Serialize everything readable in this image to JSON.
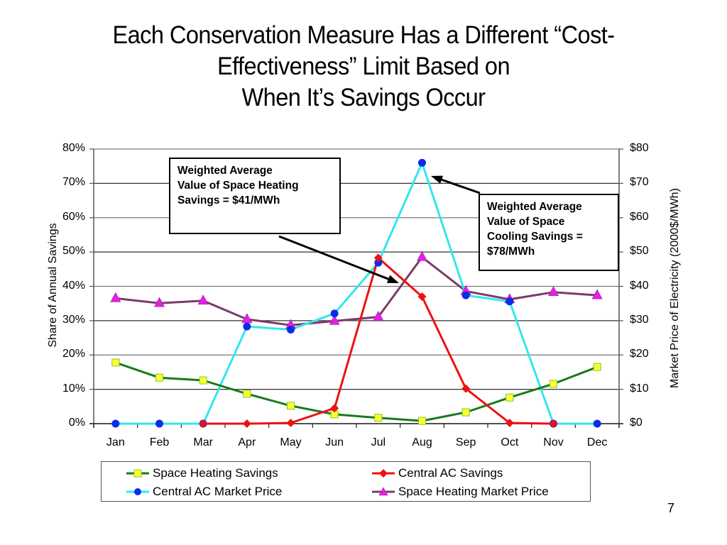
{
  "title": {
    "lines": [
      "Each Conservation Measure Has a Different “Cost-",
      "Effectiveness” Limit Based on",
      "When It’s Savings Occur"
    ]
  },
  "annotations": {
    "heating": [
      "Weighted Average",
      "Value of Space Heating",
      "Savings = $41/MWh"
    ],
    "cooling": [
      "Weighted Average",
      "Value of Space",
      "Cooling Savings =",
      "$78/MWh"
    ]
  },
  "page_number": "7",
  "colors": {
    "space_heating_savings": "#1a7a1a",
    "space_heating_savings_marker": "#ffff33",
    "central_ac_savings": "#ee1111",
    "central_ac_market_price": "#33e6ee",
    "central_ac_market_price_marker": "#0a2ee6",
    "space_heating_market_price": "#7d3a6a",
    "space_heating_market_price_marker": "#e61ee6"
  },
  "chart_data": {
    "type": "line",
    "categories": [
      "Jan",
      "Feb",
      "Mar",
      "Apr",
      "May",
      "Jun",
      "Jul",
      "Aug",
      "Sep",
      "Oct",
      "Nov",
      "Dec"
    ],
    "ylabel": "Share of Annual Savings",
    "y2label": "Market Price of Electricity (2000$/MWh)",
    "ylim": [
      0,
      80
    ],
    "y2lim": [
      0,
      80
    ],
    "yticks": [
      "0%",
      "10%",
      "20%",
      "30%",
      "40%",
      "50%",
      "60%",
      "70%",
      "80%"
    ],
    "y2ticks": [
      "$0",
      "$10",
      "$20",
      "$30",
      "$40",
      "$50",
      "$60",
      "$70",
      "$80"
    ],
    "grid": true,
    "legend_position": "bottom",
    "series": [
      {
        "name": "Space Heating Savings",
        "axis": "left",
        "marker": "square",
        "values": [
          17.8,
          13.4,
          12.6,
          8.7,
          5.2,
          2.7,
          1.7,
          0.8,
          3.3,
          7.6,
          11.6,
          16.5
        ]
      },
      {
        "name": "Central AC Savings",
        "axis": "left",
        "marker": "diamond",
        "values": [
          null,
          null,
          0,
          0,
          0.2,
          4.5,
          48.3,
          37,
          10.2,
          0.2,
          0,
          null
        ]
      },
      {
        "name": "Central AC Market Price",
        "axis": "right",
        "marker": "circle",
        "values": [
          0,
          0,
          0,
          28.3,
          27.4,
          32.1,
          46.9,
          76,
          37.4,
          35.6,
          0,
          0
        ]
      },
      {
        "name": "Space Heating Market Price",
        "axis": "right",
        "marker": "triangle",
        "values": [
          36.5,
          35.1,
          35.8,
          30.4,
          28.7,
          29.9,
          31.1,
          48.5,
          38.6,
          36.2,
          38.3,
          37.4
        ]
      }
    ]
  }
}
